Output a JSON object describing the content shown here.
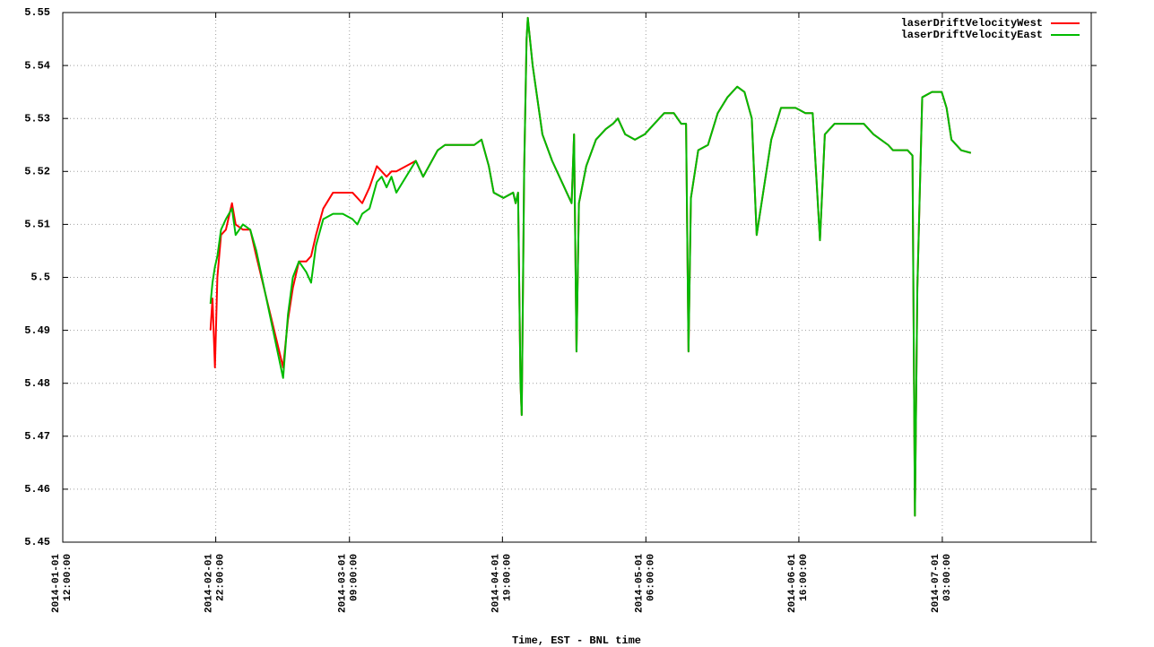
{
  "chart_data": {
    "type": "line",
    "x_label": "Time, EST - BNL time",
    "x": [
      "2014-01-31 20:00:00",
      "2014-02-01 06:00:00",
      "2014-02-01 18:00:00",
      "2014-02-02 06:00:00",
      "2014-02-03 00:00:00",
      "2014-02-04 00:00:00",
      "2014-02-05 06:00:00",
      "2014-02-06 00:00:00",
      "2014-02-07 12:00:00",
      "2014-02-09 00:00:00",
      "2014-02-10 06:00:00",
      "2014-02-15 18:00:00",
      "2014-02-16 18:00:00",
      "2014-02-17 18:00:00",
      "2014-02-19 00:00:00",
      "2014-02-20 12:00:00",
      "2014-02-21 12:00:00",
      "2014-02-22 12:00:00",
      "2014-02-24 00:00:00",
      "2014-02-26 00:00:00",
      "2014-02-28 00:00:00",
      "2014-03-02 00:00:00",
      "2014-03-03 00:00:00",
      "2014-03-04 00:00:00",
      "2014-03-05 12:00:00",
      "2014-03-07 00:00:00",
      "2014-03-08 00:00:00",
      "2014-03-09 00:00:00",
      "2014-03-10 00:00:00",
      "2014-03-11 00:00:00",
      "2014-03-15 00:00:00",
      "2014-03-16 12:00:00",
      "2014-03-19 12:00:00",
      "2014-03-21 00:00:00",
      "2014-03-23 00:00:00",
      "2014-03-25 00:00:00",
      "2014-03-27 00:00:00",
      "2014-03-28 12:00:00",
      "2014-03-30 00:00:00",
      "2014-03-31 00:00:00",
      "2014-04-02 00:00:00",
      "2014-04-04 00:00:00",
      "2014-04-04 12:00:00",
      "2014-04-05 00:00:00",
      "2014-04-05 12:00:00",
      "2014-04-05 18:00:00",
      "2014-04-06 06:00:00",
      "2014-04-06 18:00:00",
      "2014-04-07 00:00:00",
      "2014-04-08 00:00:00",
      "2014-04-10 00:00:00",
      "2014-04-12 00:00:00",
      "2014-04-15 00:00:00",
      "2014-04-16 00:00:00",
      "2014-04-16 12:00:00",
      "2014-04-17 00:00:00",
      "2014-04-17 12:00:00",
      "2014-04-19 00:00:00",
      "2014-04-21 00:00:00",
      "2014-04-23 00:00:00",
      "2014-04-24 12:00:00",
      "2014-04-25 12:00:00",
      "2014-04-27 00:00:00",
      "2014-04-29 00:00:00",
      "2014-05-01 00:00:00",
      "2014-05-03 00:00:00",
      "2014-05-05 00:00:00",
      "2014-05-07 00:00:00",
      "2014-05-08 12:00:00",
      "2014-05-09 12:00:00",
      "2014-05-10 00:00:00",
      "2014-05-10 12:00:00",
      "2014-05-12 00:00:00",
      "2014-05-14 00:00:00",
      "2014-05-16 00:00:00",
      "2014-05-18 00:00:00",
      "2014-05-20 00:00:00",
      "2014-05-21 12:00:00",
      "2014-05-23 00:00:00",
      "2014-05-24 00:00:00",
      "2014-05-25 00:00:00",
      "2014-05-27 00:00:00",
      "2014-05-29 00:00:00",
      "2014-06-01 00:00:00",
      "2014-06-03 00:00:00",
      "2014-06-04 12:00:00",
      "2014-06-06 00:00:00",
      "2014-06-07 00:00:00",
      "2014-06-09 00:00:00",
      "2014-06-12 00:00:00",
      "2014-06-15 00:00:00",
      "2014-06-17 00:00:00",
      "2014-06-20 00:00:00",
      "2014-06-21 00:00:00",
      "2014-06-23 00:00:00",
      "2014-06-24 00:00:00",
      "2014-06-25 00:00:00",
      "2014-06-25 12:00:00",
      "2014-06-26 00:00:00",
      "2014-06-27 00:00:00",
      "2014-06-29 00:00:00",
      "2014-07-01 00:00:00",
      "2014-07-02 00:00:00",
      "2014-07-03 00:00:00",
      "2014-07-05 00:00:00",
      "2014-07-07 00:00:00"
    ],
    "series": [
      {
        "name": "laserDriftVelocityWest",
        "color": "#ff0000",
        "values": [
          5.49,
          5.496,
          5.483,
          5.5,
          5.508,
          5.509,
          5.514,
          5.51,
          5.509,
          5.509,
          5.504,
          5.483,
          5.492,
          5.498,
          5.503,
          5.503,
          5.504,
          5.508,
          5.513,
          5.516,
          5.516,
          5.516,
          5.515,
          5.514,
          5.517,
          5.521,
          5.52,
          5.519,
          5.52,
          5.52,
          5.522,
          5.519,
          5.524,
          5.525,
          5.525,
          5.525,
          5.525,
          5.526,
          5.521,
          5.516,
          5.515,
          5.516,
          5.514,
          5.516,
          5.48,
          5.474,
          5.52,
          5.545,
          5.549,
          5.54,
          5.527,
          5.522,
          5.516,
          5.514,
          5.527,
          5.486,
          5.514,
          5.521,
          5.526,
          5.528,
          5.529,
          5.53,
          5.527,
          5.526,
          5.527,
          5.529,
          5.531,
          5.531,
          5.529,
          5.529,
          5.486,
          5.515,
          5.524,
          5.525,
          5.531,
          5.534,
          5.536,
          5.535,
          5.53,
          5.508,
          5.514,
          5.526,
          5.532,
          5.532,
          5.531,
          5.531,
          5.507,
          5.527,
          5.529,
          5.529,
          5.529,
          5.527,
          5.525,
          5.524,
          5.524,
          5.524,
          5.523,
          5.455,
          5.498,
          5.534,
          5.535,
          5.535,
          5.532,
          5.526,
          5.524,
          5.5235
        ]
      },
      {
        "name": "laserDriftVelocityEast",
        "color": "#00bb00",
        "values": [
          5.495,
          5.499,
          5.502,
          5.504,
          5.509,
          5.511,
          5.513,
          5.508,
          5.51,
          5.509,
          5.505,
          5.481,
          5.493,
          5.5,
          5.503,
          5.501,
          5.499,
          5.506,
          5.511,
          5.512,
          5.512,
          5.511,
          5.51,
          5.512,
          5.513,
          5.518,
          5.519,
          5.517,
          5.519,
          5.516,
          5.522,
          5.519,
          5.524,
          5.525,
          5.525,
          5.525,
          5.525,
          5.526,
          5.521,
          5.516,
          5.515,
          5.516,
          5.514,
          5.516,
          5.48,
          5.474,
          5.52,
          5.545,
          5.549,
          5.54,
          5.527,
          5.522,
          5.516,
          5.514,
          5.527,
          5.486,
          5.514,
          5.521,
          5.526,
          5.528,
          5.529,
          5.53,
          5.527,
          5.526,
          5.527,
          5.529,
          5.531,
          5.531,
          5.529,
          5.529,
          5.486,
          5.515,
          5.524,
          5.525,
          5.531,
          5.534,
          5.536,
          5.535,
          5.53,
          5.508,
          5.514,
          5.526,
          5.532,
          5.532,
          5.531,
          5.531,
          5.507,
          5.527,
          5.529,
          5.529,
          5.529,
          5.527,
          5.525,
          5.524,
          5.524,
          5.524,
          5.523,
          5.455,
          5.498,
          5.534,
          5.535,
          5.535,
          5.532,
          5.526,
          5.524,
          5.5235
        ]
      }
    ],
    "xlim": [
      "2014-01-01 12:00:00",
      "2014-07-31 17:00:00"
    ],
    "xticks": [
      "2014-01-01 12:00:00",
      "2014-02-01 22:00:00",
      "2014-03-01 09:00:00",
      "2014-04-01 19:00:00",
      "2014-05-01 06:00:00",
      "2014-06-01 16:00:00",
      "2014-07-01 03:00:00"
    ],
    "ylim": [
      5.45,
      5.55
    ],
    "yticks": [
      5.45,
      5.46,
      5.47,
      5.48,
      5.49,
      5.5,
      5.51,
      5.52,
      5.53,
      5.54,
      5.55
    ],
    "grid": true,
    "legend": "top-right"
  }
}
